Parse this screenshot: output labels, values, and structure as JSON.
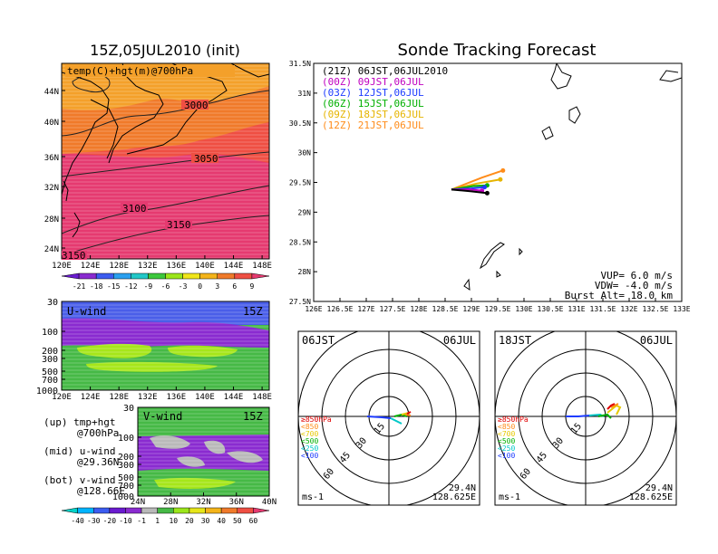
{
  "titles": {
    "left": "15Z,05JUL2010 (init)",
    "right": "Sonde Tracking Forecast"
  },
  "map_panel": {
    "label": "temp(C)+hgt(m)@700hPa",
    "lat_ticks": [
      "44N",
      "40N",
      "36N",
      "32N",
      "28N",
      "24N"
    ],
    "lon_ticks": [
      "120E",
      "124E",
      "128E",
      "132E",
      "136E",
      "140E",
      "144E",
      "148E"
    ],
    "contour_labels": [
      "3000",
      "3050",
      "3100",
      "3150",
      "3150"
    ],
    "colorbar_ticks": [
      "-21",
      "-18",
      "-15",
      "-12",
      "-9",
      "-6",
      "-3",
      "0",
      "3",
      "6",
      "9"
    ]
  },
  "u_panel": {
    "label": "U-wind",
    "time": "15Z",
    "y_ticks": [
      "30",
      "100",
      "200",
      "300",
      "500",
      "700",
      "1000"
    ],
    "x_ticks": [
      "120E",
      "124E",
      "128E",
      "132E",
      "136E",
      "140E",
      "144E",
      "148E"
    ]
  },
  "v_panel": {
    "label": "V-wind",
    "time": "15Z",
    "y_ticks": [
      "30",
      "100",
      "200",
      "300",
      "500",
      "700",
      "1000"
    ],
    "x_ticks": [
      "24N",
      "28N",
      "32N",
      "36N",
      "40N"
    ]
  },
  "notes": [
    {
      "line1": "(up) tmp+hgt",
      "line2": "@700hPa"
    },
    {
      "line1": "(mid) u-wind",
      "line2": "@29.36N"
    },
    {
      "line1": "(bot) v-wind",
      "line2": "@128.66E"
    }
  ],
  "wind_colorbar_ticks": [
    "-40",
    "-30",
    "-20",
    "-10",
    "-1",
    "1",
    "10",
    "20",
    "30",
    "40",
    "50",
    "60"
  ],
  "track": {
    "legend": [
      {
        "text": "(21Z) 06JST,06JUL2010",
        "color": "#000000"
      },
      {
        "text": "(00Z) 09JST,06JUL",
        "color": "#c000c0"
      },
      {
        "text": "(03Z) 12JST,06JUL",
        "color": "#1e3cff"
      },
      {
        "text": "(06Z) 15JST,06JUL",
        "color": "#00b000"
      },
      {
        "text": "(09Z) 18JST,06JUL",
        "color": "#e6b400"
      },
      {
        "text": "(12Z) 21JST,06JUL",
        "color": "#ff8c1a"
      }
    ],
    "lat_ticks": [
      "31.5N",
      "31N",
      "30.5N",
      "30N",
      "29.5N",
      "29N",
      "28.5N",
      "28N",
      "27.5N"
    ],
    "lon_ticks": [
      "126E",
      "126.5E",
      "127E",
      "127.5E",
      "128E",
      "128.5E",
      "129E",
      "129.5E",
      "130E",
      "130.5E",
      "131E",
      "131.5E",
      "132E",
      "132.5E",
      "133E"
    ],
    "vup": "VUP=  6.0 m/s",
    "vdw": "VDW= -4.0 m/s",
    "burst": "Burst Alt= 18.0 km"
  },
  "polar_left": {
    "time": "06JST",
    "date": "06JUL",
    "ring_labels": [
      "15",
      "30",
      "45",
      "60"
    ],
    "unit": "ms-1",
    "lat": "29.4N",
    "lon": "128.625E",
    "levels": [
      {
        "text": "≥850hPa",
        "color": "#e00000"
      },
      {
        "text": "<850",
        "color": "#ff8c1a"
      },
      {
        "text": "<700",
        "color": "#e6c800"
      },
      {
        "text": "<500",
        "color": "#00b000"
      },
      {
        "text": "<250",
        "color": "#00c8c8"
      },
      {
        "text": "<100",
        "color": "#1e3cff"
      }
    ]
  },
  "polar_right": {
    "time": "18JST",
    "date": "06JUL",
    "ring_labels": [
      "15",
      "30",
      "45",
      "60"
    ],
    "unit": "ms-1",
    "lat": "29.4N",
    "lon": "128.625E",
    "levels": [
      {
        "text": "≥850hPa",
        "color": "#e00000"
      },
      {
        "text": "<850",
        "color": "#ff8c1a"
      },
      {
        "text": "<700",
        "color": "#e6c800"
      },
      {
        "text": "<500",
        "color": "#00b000"
      },
      {
        "text": "<250",
        "color": "#00c8c8"
      },
      {
        "text": "<100",
        "color": "#1e3cff"
      }
    ]
  },
  "chart_data": [
    {
      "type": "heatmap",
      "title": "temp(C)+hgt(m)@700hPa",
      "xlim": [
        120,
        150
      ],
      "ylim": [
        22,
        47
      ],
      "height_contours": [
        3000,
        3050,
        3100,
        3150
      ],
      "colorbar": [
        -21,
        -18,
        -15,
        -12,
        -9,
        -6,
        -3,
        0,
        3,
        6,
        9
      ]
    },
    {
      "type": "heatmap",
      "title": "U-wind",
      "xlim": [
        120,
        150
      ],
      "y_levels_hPa": [
        30,
        100,
        200,
        300,
        500,
        700,
        1000
      ]
    },
    {
      "type": "heatmap",
      "title": "V-wind",
      "xlim": [
        24,
        40
      ],
      "y_levels_hPa": [
        30,
        100,
        200,
        300,
        500,
        700,
        1000
      ]
    },
    {
      "type": "line",
      "title": "Sonde Tracking Forecast",
      "xlim": [
        126,
        133
      ],
      "ylim": [
        27.5,
        31.5
      ],
      "series": [
        {
          "name": "(21Z) 06JST,06JUL2010",
          "x": [
            128.62,
            129.0,
            129.3
          ],
          "y": [
            29.38,
            29.35,
            29.32
          ],
          "color": "#000000"
        },
        {
          "name": "(00Z) 09JST,06JUL",
          "x": [
            128.62,
            129.0,
            129.2
          ],
          "y": [
            29.38,
            29.38,
            29.36
          ],
          "color": "#c000c0"
        },
        {
          "name": "(03Z) 12JST,06JUL",
          "x": [
            128.62,
            129.0,
            129.25
          ],
          "y": [
            29.38,
            29.4,
            29.42
          ],
          "color": "#1e3cff"
        },
        {
          "name": "(06Z) 15JST,06JUL",
          "x": [
            128.62,
            129.05,
            129.3
          ],
          "y": [
            29.38,
            29.44,
            29.45
          ],
          "color": "#00b000"
        },
        {
          "name": "(09Z) 18JST,06JUL",
          "x": [
            128.62,
            129.1,
            129.55
          ],
          "y": [
            29.38,
            29.48,
            29.55
          ],
          "color": "#e6b400"
        },
        {
          "name": "(12Z) 21JST,06JUL",
          "x": [
            128.62,
            129.2,
            129.6
          ],
          "y": [
            29.38,
            29.58,
            29.7
          ],
          "color": "#ff8c1a"
        }
      ]
    }
  ]
}
